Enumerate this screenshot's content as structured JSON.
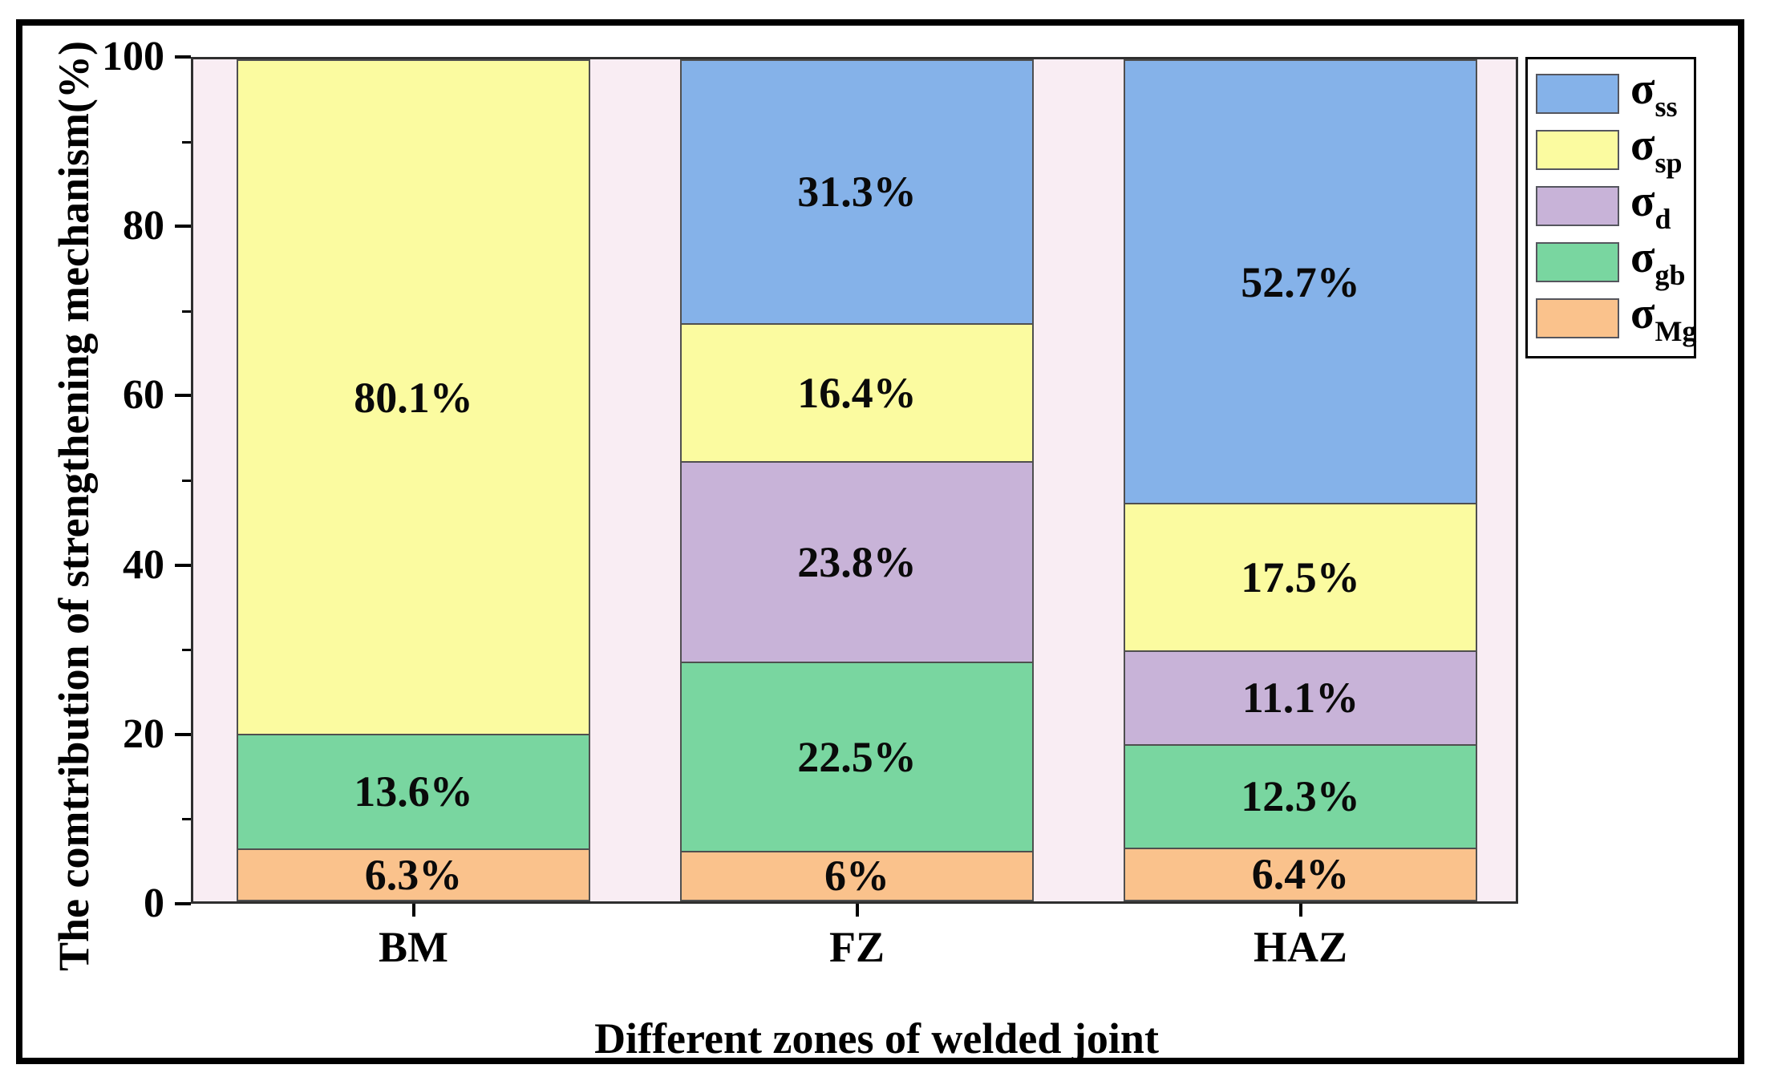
{
  "figure": {
    "background": "#ffffff",
    "outer_border_color": "#000000"
  },
  "y_axis": {
    "title": "The comtribution of strengthening mechanism(%)",
    "major_ticks": [
      0,
      20,
      40,
      60,
      80,
      100
    ],
    "minor_ticks": [
      10,
      30,
      50,
      70,
      90
    ],
    "range": [
      0,
      100
    ]
  },
  "x_axis": {
    "title": "Different zones of welded joint",
    "categories": [
      "BM",
      "FZ",
      "HAZ"
    ]
  },
  "legend": {
    "items": [
      {
        "name": "sigma-ss",
        "main": "σ",
        "sub": "ss",
        "color": "#85B2E9"
      },
      {
        "name": "sigma-sp",
        "main": "σ",
        "sub": "sp",
        "color": "#FBFBA0"
      },
      {
        "name": "sigma-d",
        "main": "σ",
        "sub": "d",
        "color": "#C8B3D8"
      },
      {
        "name": "sigma-gb",
        "main": "σ",
        "sub": "gb",
        "color": "#79D6A0"
      },
      {
        "name": "sigma-Mg",
        "main": "σ",
        "sub": "Mg",
        "color": "#FAC28C"
      }
    ]
  },
  "chart_data": {
    "type": "bar",
    "stacked": true,
    "categories": [
      "BM",
      "FZ",
      "HAZ"
    ],
    "series": [
      {
        "name": "σ_Mg",
        "color": "#FAC28C",
        "values": [
          6.3,
          6,
          6.4
        ],
        "labels": [
          "6.3%",
          "6%",
          "6.4%"
        ]
      },
      {
        "name": "σ_gb",
        "color": "#79D6A0",
        "values": [
          13.6,
          22.5,
          12.3
        ],
        "labels": [
          "13.6%",
          "22.5%",
          "12.3%"
        ]
      },
      {
        "name": "σ_d",
        "color": "#C8B3D8",
        "values": [
          0,
          23.8,
          11.1
        ],
        "labels": [
          "",
          "23.8%",
          "11.1%"
        ]
      },
      {
        "name": "σ_sp",
        "color": "#FBFBA0",
        "values": [
          80.1,
          16.4,
          17.5
        ],
        "labels": [
          "80.1%",
          "16.4%",
          "17.5%"
        ]
      },
      {
        "name": "σ_ss",
        "color": "#85B2E9",
        "values": [
          0,
          31.3,
          52.7
        ],
        "labels": [
          "",
          "31.3%",
          "52.7%"
        ]
      }
    ],
    "title": "",
    "xlabel": "Different zones of welded joint",
    "ylabel": "The comtribution of strengthening mechanism(%)",
    "ylim": [
      0,
      100
    ],
    "plot_background": "#F9EDF3",
    "grid": false,
    "legend_position": "outside-top-right"
  }
}
